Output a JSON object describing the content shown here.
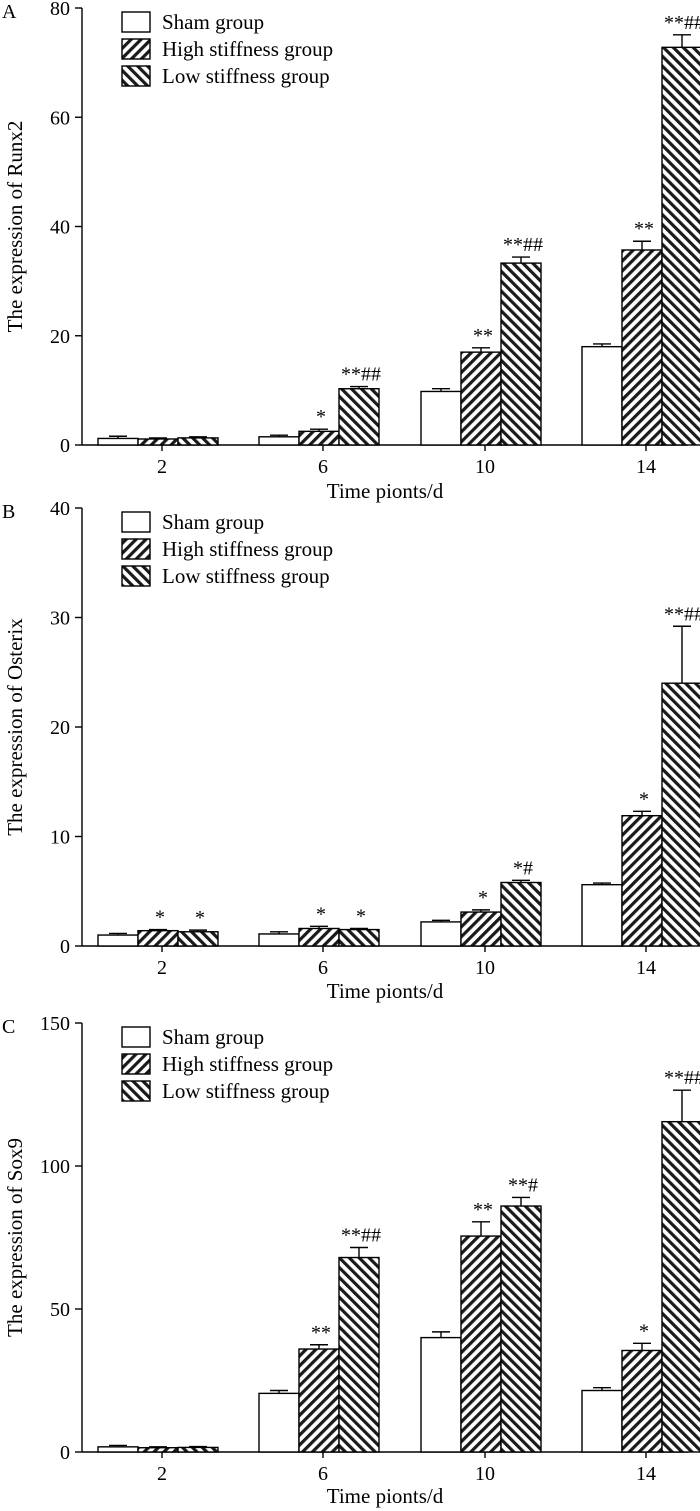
{
  "chart_data": [
    {
      "panel_label": "A",
      "type": "bar",
      "ylabel": "The expression of Runx2",
      "xlabel": "Time pionts/d",
      "categories": [
        "2",
        "6",
        "10",
        "14"
      ],
      "ylim": [
        0,
        80
      ],
      "yticks": [
        0,
        20,
        40,
        60,
        80
      ],
      "series": [
        {
          "name": "Sham group",
          "pattern": "none",
          "values": [
            1.2,
            1.5,
            9.8,
            18.0
          ],
          "errors": [
            0.4,
            0.3,
            0.5,
            0.5
          ]
        },
        {
          "name": "High stiffness group",
          "pattern": "hatch-forward",
          "values": [
            1.1,
            2.5,
            17.0,
            35.7
          ],
          "errors": [
            0.2,
            0.4,
            0.8,
            1.6
          ]
        },
        {
          "name": "Low stiffness group",
          "pattern": "hatch-backward",
          "values": [
            1.3,
            10.3,
            33.3,
            72.8
          ],
          "errors": [
            0.2,
            0.4,
            1.1,
            2.3
          ]
        }
      ],
      "annotations": [
        [
          "",
          "",
          ""
        ],
        [
          "",
          "*",
          "**##"
        ],
        [
          "",
          "**",
          "**##"
        ],
        [
          "",
          "**",
          "**##"
        ]
      ]
    },
    {
      "panel_label": "B",
      "type": "bar",
      "ylabel": "The expression of Osterix",
      "xlabel": "Time pionts/d",
      "categories": [
        "2",
        "6",
        "10",
        "14"
      ],
      "ylim": [
        0,
        40
      ],
      "yticks": [
        0,
        10,
        20,
        30,
        40
      ],
      "series": [
        {
          "name": "Sham group",
          "pattern": "none",
          "values": [
            1.0,
            1.1,
            2.2,
            5.6
          ],
          "errors": [
            0.15,
            0.2,
            0.15,
            0.15
          ]
        },
        {
          "name": "High stiffness group",
          "pattern": "hatch-forward",
          "values": [
            1.4,
            1.6,
            3.1,
            11.9
          ],
          "errors": [
            0.1,
            0.2,
            0.2,
            0.4
          ]
        },
        {
          "name": "Low stiffness group",
          "pattern": "hatch-backward",
          "values": [
            1.3,
            1.5,
            5.8,
            24.0
          ],
          "errors": [
            0.15,
            0.1,
            0.2,
            5.2
          ]
        }
      ],
      "annotations": [
        [
          "",
          "*",
          "*"
        ],
        [
          "",
          "*",
          "*"
        ],
        [
          "",
          "*",
          "*#"
        ],
        [
          "",
          "*",
          "**##"
        ]
      ]
    },
    {
      "panel_label": "C",
      "type": "bar",
      "ylabel": "The expression of Sox9",
      "xlabel": "Time pionts/d",
      "categories": [
        "2",
        "6",
        "10",
        "14"
      ],
      "ylim": [
        0,
        150
      ],
      "yticks": [
        0,
        50,
        100,
        150
      ],
      "series": [
        {
          "name": "Sham group",
          "pattern": "none",
          "values": [
            1.8,
            20.5,
            40.0,
            21.5
          ],
          "errors": [
            0.5,
            1.0,
            2.0,
            1.0
          ]
        },
        {
          "name": "High stiffness group",
          "pattern": "hatch-forward",
          "values": [
            1.5,
            36.0,
            75.5,
            35.5
          ],
          "errors": [
            0.3,
            1.5,
            5.0,
            2.5
          ]
        },
        {
          "name": "Low stiffness group",
          "pattern": "hatch-backward",
          "values": [
            1.6,
            68.0,
            86.0,
            115.5
          ],
          "errors": [
            0.3,
            3.5,
            3.0,
            11.0
          ]
        }
      ],
      "annotations": [
        [
          "",
          "",
          ""
        ],
        [
          "",
          "**",
          "**##"
        ],
        [
          "",
          "**",
          "**#"
        ],
        [
          "",
          "*",
          "**##"
        ]
      ]
    }
  ]
}
